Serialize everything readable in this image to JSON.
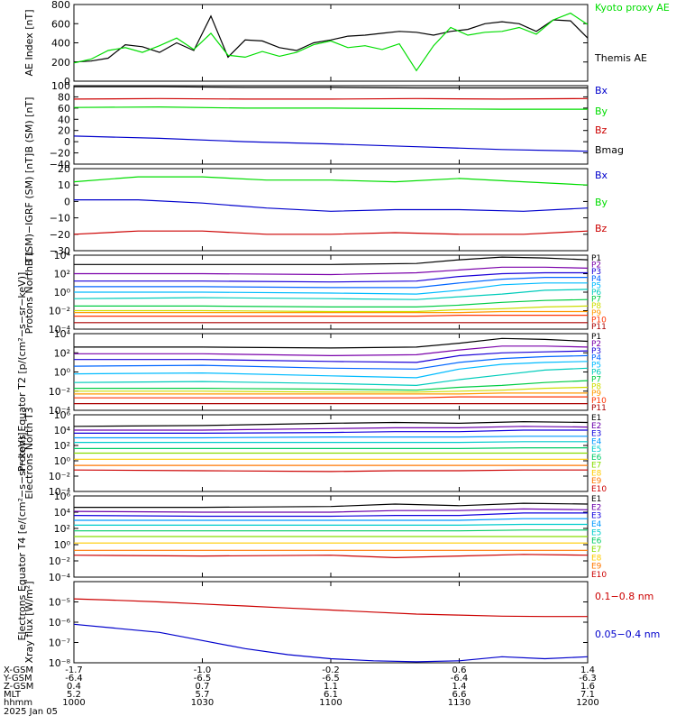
{
  "colors": {
    "black": "#000000",
    "green": "#00dd00",
    "blue": "#0000cc",
    "red": "#cc0000",
    "P": [
      "#000000",
      "#7a00aa",
      "#1a00d8",
      "#0066ff",
      "#00bbff",
      "#00ccbb",
      "#00cc44",
      "#ccdd00",
      "#ff9900",
      "#ff3300",
      "#aa0000"
    ],
    "E": [
      "#000000",
      "#6a00aa",
      "#1100dd",
      "#0099ff",
      "#00cccc",
      "#00cc66",
      "#88dd00",
      "#ffcc00",
      "#ff7700",
      "#cc0000"
    ]
  },
  "footer": {
    "rows": [
      "X-GSM",
      "Y-GSM",
      "Z-GSM",
      "MLT",
      "hhmm",
      "2025 Jan 05"
    ],
    "values": [
      [
        "-1.7",
        "-1.0",
        "-0.2",
        "0.6",
        "1.4"
      ],
      [
        "-6.4",
        "-6.5",
        "-6.5",
        "-6.4",
        "-6.3"
      ],
      [
        "0.4",
        "0.7",
        "1.1",
        "1.4",
        "1.6"
      ],
      [
        "5.2",
        "5.7",
        "6.1",
        "6.6",
        "7.1"
      ],
      [
        "1000",
        "1030",
        "1100",
        "1130",
        "1200"
      ]
    ]
  },
  "chart_data": [
    {
      "type": "line",
      "ylabel": "AE Index [nT]",
      "ylim": [
        0,
        800
      ],
      "yticks": [
        "800",
        "600",
        "400",
        "200",
        "0"
      ],
      "x": [
        1000,
        1004,
        1008,
        1012,
        1016,
        1020,
        1024,
        1028,
        1032,
        1036,
        1040,
        1044,
        1048,
        1052,
        1056,
        1100,
        1104,
        1108,
        1112,
        1116,
        1120,
        1124,
        1128,
        1132,
        1136,
        1140,
        1144,
        1148,
        1152,
        1156,
        1200
      ],
      "series": [
        {
          "name": "Themis AE",
          "color": "black",
          "values": [
            200,
            210,
            240,
            380,
            360,
            300,
            400,
            320,
            680,
            250,
            430,
            420,
            350,
            320,
            400,
            430,
            470,
            480,
            500,
            520,
            510,
            480,
            520,
            540,
            600,
            620,
            600,
            520,
            640,
            630,
            450
          ]
        },
        {
          "name": "Kyoto proxy AE",
          "color": "green",
          "values": [
            190,
            230,
            320,
            350,
            300,
            370,
            450,
            330,
            500,
            270,
            250,
            310,
            260,
            300,
            380,
            420,
            350,
            370,
            330,
            390,
            110,
            370,
            560,
            480,
            510,
            520,
            560,
            490,
            640,
            710,
            590
          ]
        }
      ],
      "legend": [
        "Kyoto proxy AE",
        "Themis AE"
      ]
    },
    {
      "type": "line",
      "ylabel": "B (SM) [nT]",
      "ylim": [
        -40,
        100
      ],
      "yticks": [
        "100",
        "80",
        "60",
        "40",
        "20",
        "0",
        "−20",
        "−40"
      ],
      "x": [
        1000,
        1020,
        1040,
        1100,
        1120,
        1140,
        1200
      ],
      "series": [
        {
          "name": "Bx",
          "color": "blue",
          "values": [
            10,
            6,
            0,
            -4,
            -9,
            -14,
            -17
          ]
        },
        {
          "name": "By",
          "color": "green",
          "values": [
            61,
            62,
            60,
            60,
            59,
            58,
            58
          ]
        },
        {
          "name": "Bz",
          "color": "red",
          "values": [
            76,
            77,
            76,
            76,
            77,
            76,
            77
          ]
        },
        {
          "name": "Bmag",
          "color": "black",
          "values": [
            98,
            98,
            97,
            97,
            96,
            96,
            96
          ]
        }
      ],
      "legend": [
        "Bx",
        "By",
        "Bz",
        "Bmag"
      ]
    },
    {
      "type": "line",
      "ylabel": "B (SM)−IGRF (SM) [nT]",
      "ylim": [
        -30,
        20
      ],
      "yticks": [
        "20",
        "10",
        "0",
        "−10",
        "−20",
        "−30"
      ],
      "x": [
        1000,
        1015,
        1030,
        1045,
        1100,
        1115,
        1130,
        1145,
        1200
      ],
      "series": [
        {
          "name": "Bx",
          "color": "blue",
          "values": [
            1,
            1,
            -1,
            -4,
            -6,
            -5,
            -5,
            -6,
            -4
          ]
        },
        {
          "name": "By",
          "color": "green",
          "values": [
            12,
            15,
            15,
            13,
            13,
            12,
            14,
            12,
            10
          ]
        },
        {
          "name": "Bz",
          "color": "red",
          "values": [
            -20,
            -18,
            -18,
            -20,
            -20,
            -19,
            -20,
            -20,
            -18
          ]
        }
      ],
      "legend": [
        "Bx",
        "By",
        "Bz"
      ]
    },
    {
      "type": "line",
      "scale": "log",
      "ylabel": "Protons North T1",
      "ylim_exp": [
        -4,
        4
      ],
      "yticks": [
        "10⁴",
        "10²",
        "10⁰",
        "10⁻²",
        "10⁻⁴"
      ],
      "x": [
        1000,
        1030,
        1100,
        1120,
        1130,
        1140,
        1150,
        1200
      ],
      "series": [
        {
          "name": "P1",
          "values": [
            3.0,
            3.0,
            3.0,
            3.1,
            3.5,
            3.8,
            3.7,
            3.5
          ]
        },
        {
          "name": "P2",
          "values": [
            2.0,
            2.0,
            1.9,
            2.1,
            2.4,
            2.7,
            2.7,
            2.6
          ]
        },
        {
          "name": "P3",
          "values": [
            1.2,
            1.2,
            1.1,
            1.2,
            1.7,
            2.0,
            2.1,
            2.1
          ]
        },
        {
          "name": "P4",
          "values": [
            0.6,
            0.6,
            0.5,
            0.5,
            1.0,
            1.4,
            1.6,
            1.6
          ]
        },
        {
          "name": "P5",
          "values": [
            0,
            0,
            -0.1,
            -0.2,
            0.2,
            0.8,
            1.0,
            1.0
          ]
        },
        {
          "name": "P6",
          "values": [
            -0.7,
            -0.6,
            -0.7,
            -0.8,
            -0.5,
            -0.2,
            0.2,
            0.3
          ]
        },
        {
          "name": "P7",
          "values": [
            -1.5,
            -1.5,
            -1.6,
            -1.6,
            -1.4,
            -1.1,
            -0.9,
            -0.8
          ]
        },
        {
          "name": "P8",
          "values": [
            -2.0,
            -2.0,
            -2.1,
            -2.1,
            -1.9,
            -1.8,
            -1.6,
            -1.5
          ]
        },
        {
          "name": "P9",
          "values": [
            -2.2,
            -2.2,
            -2.2,
            -2.2,
            -2.2,
            -2.1,
            -2.1,
            -2.1
          ]
        },
        {
          "name": "P10",
          "values": [
            -2.6,
            -2.6,
            -2.6,
            -2.6,
            -2.5,
            -2.5,
            -2.5,
            -2.5
          ]
        },
        {
          "name": "P11",
          "values": [
            -3.3,
            -3.3,
            -3.3,
            -3.3,
            -3.3,
            -3.3,
            -3.3,
            -3.3
          ]
        }
      ],
      "legend": [
        "P1",
        "P2",
        "P3",
        "P4",
        "P5",
        "P6",
        "P7",
        "P8",
        "P9",
        "P10",
        "P11"
      ]
    },
    {
      "type": "line",
      "scale": "log",
      "ylabel": "Protons Equator T2 [p/(cm²−s−sr−keV)]",
      "ylim_exp": [
        -4,
        4
      ],
      "yticks": [
        "10⁴",
        "10²",
        "10⁰",
        "10⁻²",
        "10⁻⁴"
      ],
      "x": [
        1000,
        1030,
        1100,
        1120,
        1130,
        1140,
        1150,
        1200
      ],
      "series": [
        {
          "name": "P1",
          "values": [
            2.6,
            2.6,
            2.5,
            2.6,
            3.0,
            3.5,
            3.4,
            3.2
          ]
        },
        {
          "name": "P2",
          "values": [
            1.9,
            1.9,
            1.7,
            1.8,
            2.3,
            2.7,
            2.7,
            2.6
          ]
        },
        {
          "name": "P3",
          "values": [
            1.3,
            1.3,
            1.1,
            1.0,
            1.7,
            2.0,
            2.1,
            2.2
          ]
        },
        {
          "name": "P4",
          "values": [
            0.6,
            0.7,
            0.4,
            0.3,
            1.0,
            1.4,
            1.6,
            1.7
          ]
        },
        {
          "name": "P5",
          "values": [
            -0.2,
            -0.1,
            -0.4,
            -0.6,
            0.3,
            0.8,
            1.0,
            1.1
          ]
        },
        {
          "name": "P6",
          "values": [
            -1.1,
            -1.0,
            -1.2,
            -1.4,
            -0.8,
            -0.3,
            0.2,
            0.4
          ]
        },
        {
          "name": "P7",
          "values": [
            -1.7,
            -1.7,
            -1.8,
            -1.9,
            -1.6,
            -1.4,
            -1.1,
            -0.9
          ]
        },
        {
          "name": "P8",
          "values": [
            -2.0,
            -2.0,
            -2.1,
            -2.1,
            -2.0,
            -1.9,
            -1.7,
            -1.6
          ]
        },
        {
          "name": "P9",
          "values": [
            -2.3,
            -2.3,
            -2.3,
            -2.3,
            -2.3,
            -2.2,
            -2.2,
            -2.2
          ]
        },
        {
          "name": "P10",
          "values": [
            -2.7,
            -2.7,
            -2.7,
            -2.7,
            -2.6,
            -2.6,
            -2.6,
            -2.6
          ]
        },
        {
          "name": "P11",
          "values": [
            -3.3,
            -3.3,
            -3.3,
            -3.3,
            -3.3,
            -3.3,
            -3.3,
            -3.3
          ]
        }
      ],
      "legend": [
        "P1",
        "P2",
        "P3",
        "P4",
        "P5",
        "P6",
        "P7",
        "P8",
        "P9",
        "P10",
        "P11"
      ]
    },
    {
      "type": "line",
      "scale": "log",
      "ylabel": "Electrons North T3",
      "ylim_exp": [
        -4,
        6
      ],
      "yticks": [
        "10⁶",
        "10⁴",
        "10²",
        "10⁰",
        "10⁻²",
        "10⁻⁴"
      ],
      "x": [
        1000,
        1030,
        1100,
        1115,
        1130,
        1145,
        1200
      ],
      "series": [
        {
          "name": "E1",
          "values": [
            4.5,
            4.6,
            4.9,
            5.0,
            4.9,
            5.1,
            5.0
          ]
        },
        {
          "name": "E2",
          "values": [
            4.0,
            4.0,
            4.2,
            4.3,
            4.3,
            4.5,
            4.4
          ]
        },
        {
          "name": "E3",
          "values": [
            3.6,
            3.6,
            3.7,
            3.8,
            3.8,
            4.0,
            4.0
          ]
        },
        {
          "name": "E4",
          "values": [
            3.0,
            3.0,
            3.1,
            3.1,
            3.1,
            3.2,
            3.2
          ]
        },
        {
          "name": "E5",
          "values": [
            2.4,
            2.4,
            2.4,
            2.4,
            2.4,
            2.5,
            2.5
          ]
        },
        {
          "name": "E6",
          "values": [
            1.6,
            1.6,
            1.6,
            1.6,
            1.6,
            1.7,
            1.7
          ]
        },
        {
          "name": "E7",
          "values": [
            1.0,
            1.0,
            1.0,
            1.0,
            1.0,
            1.0,
            1.0
          ]
        },
        {
          "name": "E8",
          "values": [
            0.2,
            0.2,
            0.2,
            0.2,
            0.2,
            0.2,
            0.2
          ]
        },
        {
          "name": "E9",
          "values": [
            -0.6,
            -0.6,
            -0.6,
            -0.6,
            -0.6,
            -0.6,
            -0.6
          ]
        },
        {
          "name": "E10",
          "values": [
            -1.2,
            -1.3,
            -1.4,
            -1.3,
            -1.3,
            -1.2,
            -1.2
          ]
        }
      ],
      "legend": [
        "E1",
        "E2",
        "E3",
        "E4",
        "E5",
        "E6",
        "E7",
        "E8",
        "E9",
        "E10"
      ]
    },
    {
      "type": "line",
      "scale": "log",
      "ylabel": "Electrons Equator T4 [e/(cm²−s−sr−keV)]",
      "ylim_exp": [
        -4,
        6
      ],
      "yticks": [
        "10⁶",
        "10⁴",
        "10²",
        "10⁰",
        "10⁻²",
        "10⁻⁴"
      ],
      "x": [
        1000,
        1030,
        1100,
        1115,
        1130,
        1145,
        1200
      ],
      "series": [
        {
          "name": "E1",
          "values": [
            4.6,
            4.6,
            4.7,
            5.0,
            4.8,
            5.1,
            5.0
          ]
        },
        {
          "name": "E2",
          "values": [
            4.1,
            4.0,
            4.0,
            4.2,
            4.2,
            4.4,
            4.3
          ]
        },
        {
          "name": "E3",
          "values": [
            3.6,
            3.5,
            3.5,
            3.6,
            3.6,
            3.9,
            3.9
          ]
        },
        {
          "name": "E4",
          "values": [
            3.0,
            3.0,
            3.0,
            3.0,
            3.0,
            3.2,
            3.2
          ]
        },
        {
          "name": "E5",
          "values": [
            2.4,
            2.4,
            2.4,
            2.4,
            2.4,
            2.5,
            2.5
          ]
        },
        {
          "name": "E6",
          "values": [
            1.7,
            1.7,
            1.7,
            1.7,
            1.7,
            1.8,
            1.8
          ]
        },
        {
          "name": "E7",
          "values": [
            1.0,
            1.0,
            1.0,
            1.0,
            1.0,
            1.0,
            1.0
          ]
        },
        {
          "name": "E8",
          "values": [
            0.2,
            0.2,
            0.2,
            0.2,
            0.2,
            0.2,
            0.2
          ]
        },
        {
          "name": "E9",
          "values": [
            -0.7,
            -0.7,
            -0.7,
            -0.7,
            -0.7,
            -0.7,
            -0.7
          ]
        },
        {
          "name": "E10",
          "values": [
            -1.3,
            -1.4,
            -1.3,
            -1.6,
            -1.4,
            -1.2,
            -1.3
          ]
        }
      ],
      "legend": [
        "E1",
        "E2",
        "E3",
        "E4",
        "E5",
        "E6",
        "E7",
        "E8",
        "E9",
        "E10"
      ]
    },
    {
      "type": "line",
      "scale": "log",
      "ylabel": "Xray flux [W/m²]",
      "ylim_exp": [
        -8,
        -4
      ],
      "yticks": [
        "10⁻⁵",
        "10⁻⁶",
        "10⁻⁷",
        "10⁻⁸"
      ],
      "x": [
        1000,
        1010,
        1020,
        1030,
        1040,
        1050,
        1100,
        1110,
        1120,
        1130,
        1140,
        1150,
        1200
      ],
      "series": [
        {
          "name": "0.1−0.8 nm",
          "color": "red",
          "values": [
            -4.85,
            -4.92,
            -5.0,
            -5.1,
            -5.2,
            -5.3,
            -5.4,
            -5.5,
            -5.6,
            -5.65,
            -5.7,
            -5.72,
            -5.72
          ]
        },
        {
          "name": "0.05−0.4 nm",
          "color": "blue",
          "values": [
            -6.1,
            -6.3,
            -6.5,
            -6.9,
            -7.3,
            -7.6,
            -7.8,
            -7.9,
            -7.95,
            -7.9,
            -7.7,
            -7.8,
            -7.7
          ]
        }
      ],
      "legend": [
        "0.1−0.8 nm",
        "0.05−0.4 nm"
      ]
    }
  ]
}
